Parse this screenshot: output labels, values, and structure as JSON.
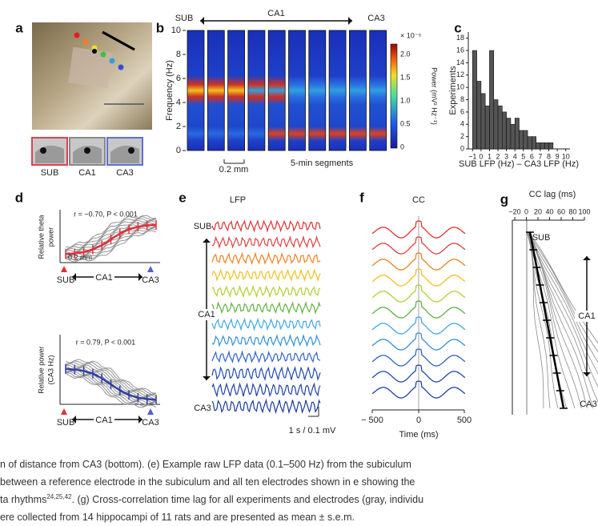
{
  "panels": {
    "a": {
      "letter": "a",
      "labels": [
        "SUB",
        "CA1",
        "CA3"
      ]
    },
    "b": {
      "letter": "b",
      "sub": "SUB",
      "ca1": "CA1",
      "ca3": "CA3",
      "ylabel": "Frequency (Hz)",
      "yticks": [
        10,
        8,
        6,
        4,
        2,
        0
      ],
      "cbar_exp": "× 10⁻⁵",
      "cbar_ticks": [
        "2.0",
        "1.5",
        "1.0",
        "0.5",
        "0"
      ],
      "cbar_label": "Power (mV² Hz⁻¹)",
      "scale": "0.2 mm",
      "segments": "5-min segments"
    },
    "c": {
      "letter": "c"
    },
    "d": {
      "letter": "d",
      "top_stat": "r = −0.70, P < 0.001",
      "top_ylabel": "Relative theta",
      "top_ylabel2": "power",
      "scale": "0.2 mm",
      "bottom_stat": "r = 0.79, P < 0.001",
      "bottom_ylabel": "Relative power",
      "bottom_ylabel2": "(CA3 Hz)",
      "sub": "SUB",
      "ca1": "CA1",
      "ca3": "CA3"
    },
    "e": {
      "letter": "e",
      "title": "LFP",
      "sub": "SUB",
      "ca1": "CA1",
      "ca3": "CA3",
      "scale": "1 s / 0.1 mV"
    },
    "f": {
      "letter": "f",
      "title": "CC",
      "xticks": [
        "− 500",
        "0",
        "500"
      ],
      "xlabel": "Time (ms)"
    },
    "g": {
      "letter": "g",
      "title": "CC lag (ms)",
      "xticks": [
        "−20",
        "0",
        "20",
        "40",
        "60",
        "80",
        "100"
      ],
      "sub": "SUB",
      "ca1": "CA1",
      "ca3": "CA3"
    }
  },
  "chart_data": {
    "type": "histogram",
    "xlabel": "SUB LFP (Hz) – CA3 LFP (Hz)",
    "ylabel": "Experiments",
    "bins": [
      -1,
      -0.5,
      0,
      0.5,
      1,
      1.5,
      2,
      2.5,
      3,
      3.5,
      4,
      4.5,
      5,
      5.5,
      6,
      6.5,
      7,
      7.5,
      8,
      8.5
    ],
    "values": [
      16,
      11,
      9,
      7,
      16,
      8,
      7,
      6,
      5,
      4,
      5,
      3,
      3,
      2,
      2,
      1,
      1,
      1,
      1
    ],
    "color": "#555555",
    "xlim": [
      -1.5,
      10.5
    ],
    "ylim": [
      0,
      19
    ],
    "xticks": [
      {
        "value": -1,
        "label": "−1"
      },
      0,
      1,
      2,
      3,
      4,
      5,
      6,
      7,
      8,
      9,
      10
    ],
    "yticks": [
      0,
      2,
      4,
      6,
      8,
      10,
      12,
      14,
      16,
      18
    ]
  },
  "caption": {
    "line1": "n of distance from CA3 (bottom). (e) Example raw LFP data (0.1–500 Hz) from the subiculum",
    "line2": "between a reference electrode in the subiculum and all ten electrodes shown in e showing the",
    "line3": "ta rhythms",
    "line3_sup": "24,25,42",
    "line3_rest": ". (g) Cross-correlation time lag for all experiments and electrodes (gray, individu",
    "line4": "ere collected from 14 hippocampi of 11 rats and are presented as mean ± s.e.m."
  }
}
